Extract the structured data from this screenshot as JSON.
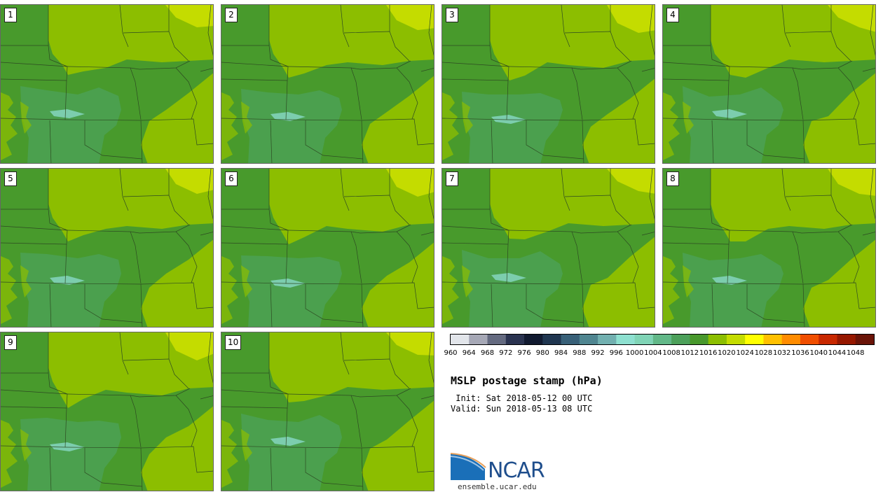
{
  "panels": [
    {
      "id": "1",
      "label": "1"
    },
    {
      "id": "2",
      "label": "2"
    },
    {
      "id": "3",
      "label": "3"
    },
    {
      "id": "4",
      "label": "4"
    },
    {
      "id": "5",
      "label": "5"
    },
    {
      "id": "6",
      "label": "6"
    },
    {
      "id": "7",
      "label": "7"
    },
    {
      "id": "8",
      "label": "8"
    },
    {
      "id": "9",
      "label": "9"
    },
    {
      "id": "10",
      "label": "10"
    }
  ],
  "colorbar": {
    "levels": [
      "960",
      "964",
      "968",
      "972",
      "976",
      "980",
      "984",
      "988",
      "992",
      "996",
      "1000",
      "1004",
      "1008",
      "1012",
      "1016",
      "1020",
      "1024",
      "1028",
      "1032",
      "1036",
      "1040",
      "1044",
      "1048"
    ],
    "colors": [
      "#e2e5ea",
      "#a6a8b6",
      "#646a80",
      "#2a3350",
      "#111a30",
      "#203650",
      "#386078",
      "#4f8590",
      "#72b0b0",
      "#8ee0d0",
      "#80d4b6",
      "#62b888",
      "#4ca05a",
      "#48982c",
      "#8cbe00",
      "#c4dc00",
      "#ffff00",
      "#ffc000",
      "#ff8c00",
      "#f04e00",
      "#c82800",
      "#961800",
      "#6a1408"
    ]
  },
  "title": "MSLP postage stamp (hPa)",
  "init_line": " Init: Sat 2018-05-12 00 UTC",
  "valid_line": "Valid: Sun 2018-05-13 08 UTC",
  "logo": {
    "text": "NCAR",
    "url": "ensemble.ucar.edu"
  }
}
